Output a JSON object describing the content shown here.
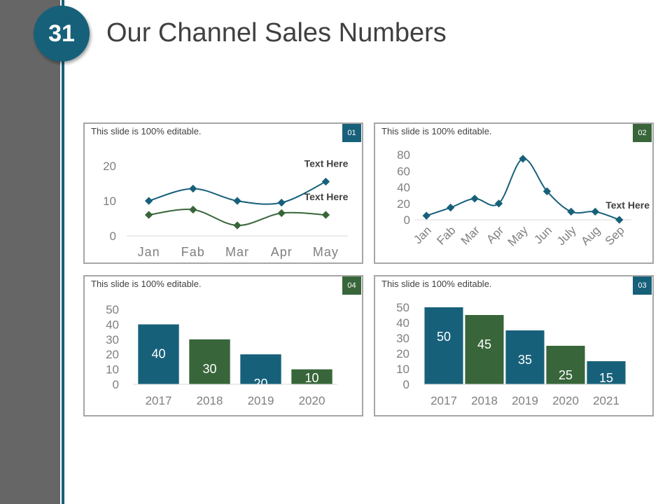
{
  "slide": {
    "number": "31",
    "title": "Our Channel Sales Numbers"
  },
  "colors": {
    "teal": "#17607a",
    "green": "#38663a",
    "gray": "#666666"
  },
  "chart_data": [
    {
      "id": "01",
      "type": "line",
      "note": "This slide is 100% editable.",
      "categories": [
        "Jan",
        "Fab",
        "Mar",
        "Apr",
        "May"
      ],
      "series": [
        {
          "name": "Text Here",
          "color": "#17607a",
          "values": [
            10,
            13.5,
            10,
            9.5,
            15.5
          ]
        },
        {
          "name": "Text Here",
          "color": "#38663a",
          "values": [
            6,
            7.5,
            3,
            6.5,
            6
          ]
        }
      ],
      "ylim": [
        0,
        20
      ],
      "yticks": [
        0,
        10,
        20
      ]
    },
    {
      "id": "02",
      "type": "line",
      "note": "This slide is 100% editable.",
      "categories": [
        "Jan",
        "Fab",
        "Mar",
        "Apr",
        "May",
        "Jun",
        "July",
        "Aug",
        "Sep"
      ],
      "series": [
        {
          "name": "Text Here",
          "color": "#17607a",
          "values": [
            5,
            15,
            26,
            20,
            75,
            35,
            10,
            10,
            0
          ]
        }
      ],
      "ylim": [
        0,
        80
      ],
      "yticks": [
        0,
        20,
        40,
        60,
        80
      ]
    },
    {
      "id": "04",
      "type": "bar",
      "note": "This slide is 100% editable.",
      "categories": [
        "2017",
        "2018",
        "2019",
        "2020"
      ],
      "values": [
        40,
        30,
        20,
        10
      ],
      "colors": [
        "#17607a",
        "#38663a",
        "#17607a",
        "#38663a"
      ],
      "ylim": [
        0,
        50
      ],
      "yticks": [
        0,
        10,
        20,
        30,
        40,
        50
      ]
    },
    {
      "id": "03",
      "type": "bar",
      "note": "This slide is 100% editable.",
      "categories": [
        "2017",
        "2018",
        "2019",
        "2020",
        "2021"
      ],
      "values": [
        50,
        45,
        35,
        25,
        15
      ],
      "colors": [
        "#17607a",
        "#38663a",
        "#17607a",
        "#38663a",
        "#17607a"
      ],
      "ylim": [
        0,
        50
      ],
      "yticks": [
        0,
        10,
        20,
        30,
        40,
        50
      ]
    }
  ]
}
